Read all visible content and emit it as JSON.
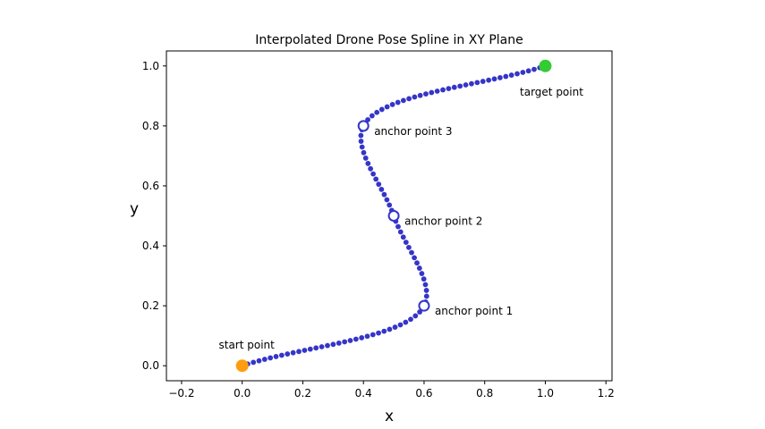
{
  "chart_data": {
    "type": "scatter",
    "title": "Interpolated Drone Pose Spline in XY Plane",
    "xlabel": "x",
    "ylabel": "y",
    "xlim": [
      -0.25,
      1.22
    ],
    "ylim": [
      -0.05,
      1.05
    ],
    "x_ticks": [
      -0.2,
      0.0,
      0.2,
      0.4,
      0.6,
      0.8,
      1.0,
      1.2
    ],
    "x_tick_labels": [
      "−0.2",
      "0.0",
      "0.2",
      "0.4",
      "0.6",
      "0.8",
      "1.0",
      "1.2"
    ],
    "y_ticks": [
      0.0,
      0.2,
      0.4,
      0.6,
      0.8,
      1.0
    ],
    "y_tick_labels": [
      "0.0",
      "0.2",
      "0.4",
      "0.6",
      "0.8",
      "1.0"
    ],
    "grid": false,
    "colors": {
      "spline": "#3535c8",
      "start": "#ff9d10",
      "target": "#33cc33",
      "anchor_edge": "#3535c8",
      "anchor_fill": "#ffffff"
    },
    "spline_points": {
      "name": "interpolated spline",
      "knots": [
        {
          "x": 0.0,
          "y": 0.0
        },
        {
          "x": 0.6,
          "y": 0.2
        },
        {
          "x": 0.5,
          "y": 0.5
        },
        {
          "x": 0.4,
          "y": 0.8
        },
        {
          "x": 1.0,
          "y": 1.0
        }
      ],
      "count": 101
    },
    "start": {
      "x": 0.0,
      "y": 0.0,
      "label": "start point"
    },
    "target": {
      "x": 1.0,
      "y": 1.0,
      "label": "target point"
    },
    "anchors": [
      {
        "x": 0.6,
        "y": 0.2,
        "label": "anchor point 1"
      },
      {
        "x": 0.5,
        "y": 0.5,
        "label": "anchor point 2"
      },
      {
        "x": 0.4,
        "y": 0.8,
        "label": "anchor point 3"
      }
    ]
  }
}
